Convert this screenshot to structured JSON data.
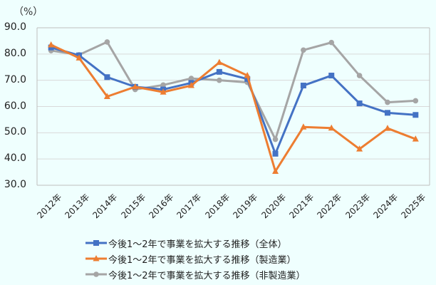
{
  "chart_data": {
    "type": "line",
    "title": "",
    "unit_label": "（%）",
    "xlabel": "",
    "ylabel": "%",
    "ylim": [
      30.0,
      90.0
    ],
    "yticks": [
      "90.0",
      "80.0",
      "70.0",
      "60.0",
      "50.0",
      "40.0",
      "30.0"
    ],
    "grid": true,
    "legend_position": "bottom",
    "categories": [
      "2012年",
      "2013年",
      "2014年",
      "2015年",
      "2016年",
      "2017年",
      "2018年",
      "2019年",
      "2020年",
      "2021年",
      "2022年",
      "2023年",
      "2024年",
      "2025年"
    ],
    "series": [
      {
        "name": "今後1～2年で事業を拡大する推移（全体）",
        "color": "#4472c4",
        "marker": "square",
        "values": [
          82.5,
          79.5,
          71.2,
          67.5,
          66.5,
          69.0,
          73.2,
          70.5,
          42.0,
          68.0,
          71.8,
          61.2,
          57.6,
          56.8
        ]
      },
      {
        "name": "今後1～2年で事業を拡大する推移（製造業）",
        "color": "#ed7d31",
        "marker": "triangle",
        "values": [
          83.5,
          78.5,
          63.8,
          67.5,
          65.5,
          68.0,
          76.8,
          71.8,
          35.3,
          52.2,
          51.8,
          43.8,
          51.7,
          47.6
        ]
      },
      {
        "name": "今後1～2年で事業を拡大する推移（非製造業）",
        "color": "#a5a5a5",
        "marker": "circle",
        "values": [
          81.3,
          79.7,
          84.6,
          66.5,
          68.2,
          70.7,
          70.0,
          69.2,
          47.5,
          81.5,
          84.4,
          71.8,
          61.6,
          62.2
        ]
      }
    ]
  }
}
